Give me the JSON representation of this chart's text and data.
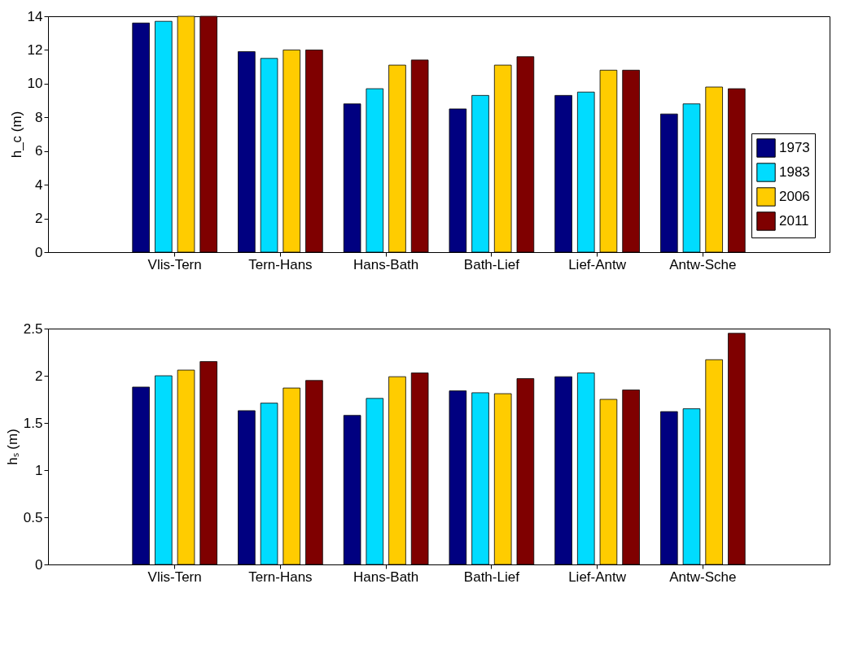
{
  "chart_data": [
    {
      "type": "bar",
      "ylabel": "h_c (m)",
      "categories": [
        "Vlis-Tern",
        "Tern-Hans",
        "Hans-Bath",
        "Bath-Lief",
        "Lief-Antw",
        "Antw-Sche"
      ],
      "series": [
        {
          "name": "1973",
          "color": "#000080",
          "values": [
            13.6,
            11.9,
            8.8,
            8.5,
            9.3,
            8.2
          ]
        },
        {
          "name": "1983",
          "color": "#00dcff",
          "values": [
            13.7,
            11.5,
            9.7,
            9.3,
            9.5,
            8.8
          ]
        },
        {
          "name": "2006",
          "color": "#ffcc00",
          "values": [
            14.0,
            12.0,
            11.1,
            11.1,
            10.8,
            9.8
          ]
        },
        {
          "name": "2011",
          "color": "#7f0000",
          "values": [
            14.0,
            12.0,
            11.4,
            11.6,
            10.8,
            9.7
          ]
        }
      ],
      "ylim": [
        0,
        14
      ],
      "yticks": [
        0,
        2,
        4,
        6,
        8,
        10,
        12,
        14
      ],
      "grid": false,
      "legend": "bottom right"
    },
    {
      "type": "bar",
      "ylabel": "hₛ (m)",
      "categories": [
        "Vlis-Tern",
        "Tern-Hans",
        "Hans-Bath",
        "Bath-Lief",
        "Lief-Antw",
        "Antw-Sche"
      ],
      "series": [
        {
          "name": "1973",
          "color": "#000080",
          "values": [
            1.88,
            1.63,
            1.58,
            1.84,
            1.99,
            1.62
          ]
        },
        {
          "name": "1983",
          "color": "#00dcff",
          "values": [
            2.0,
            1.71,
            1.76,
            1.82,
            2.03,
            1.65
          ]
        },
        {
          "name": "2006",
          "color": "#ffcc00",
          "values": [
            2.06,
            1.87,
            1.99,
            1.81,
            1.75,
            2.17
          ]
        },
        {
          "name": "2011",
          "color": "#7f0000",
          "values": [
            2.15,
            1.95,
            2.03,
            1.97,
            1.85,
            2.45
          ]
        }
      ],
      "ylim": [
        0,
        2.5
      ],
      "yticks": [
        0,
        0.5,
        1,
        1.5,
        2,
        2.5
      ],
      "grid": false,
      "legend": false
    }
  ]
}
